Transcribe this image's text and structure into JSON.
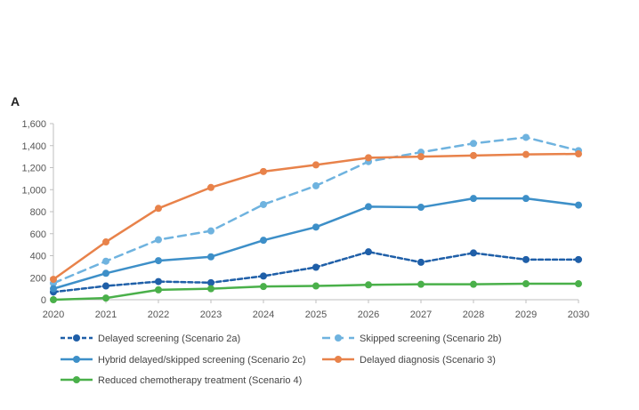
{
  "panel_label": "A",
  "chart_data": {
    "type": "line",
    "title": "",
    "xlabel": "",
    "ylabel": "",
    "ylim": [
      0,
      1600
    ],
    "yticks": [
      0,
      200,
      400,
      600,
      800,
      1000,
      1200,
      1400,
      1600
    ],
    "ytick_labels": [
      "0",
      "200",
      "400",
      "600",
      "800",
      "1,000",
      "1,200",
      "1,400",
      "1,600"
    ],
    "x": [
      "2020",
      "2021",
      "2022",
      "2023",
      "2024",
      "2025",
      "2026",
      "2027",
      "2028",
      "2029",
      "2030"
    ],
    "grid": false,
    "legend_position": "bottom",
    "series": [
      {
        "name": "Delayed screening (Scenario 2a)",
        "color": "#1f5fa8",
        "dash": "dashed-heavy",
        "marker": true,
        "values": [
          70,
          125,
          165,
          155,
          215,
          295,
          435,
          340,
          425,
          365,
          365
        ]
      },
      {
        "name": "Skipped screening (Scenario 2b)",
        "color": "#6fb3df",
        "dash": "dashed-light",
        "marker": true,
        "values": [
          150,
          350,
          545,
          625,
          865,
          1035,
          1255,
          1340,
          1420,
          1475,
          1355
        ]
      },
      {
        "name": "Hybrid delayed/skipped screening (Scenario 2c)",
        "color": "#3d8fc8",
        "dash": "solid",
        "marker": false,
        "values": [
          100,
          240,
          355,
          390,
          540,
          660,
          845,
          840,
          920,
          920,
          860
        ]
      },
      {
        "name": "Delayed diagnosis (Scenario 3)",
        "color": "#e8824a",
        "dash": "solid",
        "marker": false,
        "values": [
          185,
          525,
          830,
          1020,
          1165,
          1225,
          1290,
          1300,
          1310,
          1320,
          1325
        ]
      },
      {
        "name": "Reduced chemotherapy treatment (Scenario 4)",
        "color": "#4ab04a",
        "dash": "solid",
        "marker": false,
        "values": [
          0,
          15,
          90,
          100,
          120,
          125,
          135,
          140,
          140,
          145,
          145
        ]
      }
    ]
  }
}
